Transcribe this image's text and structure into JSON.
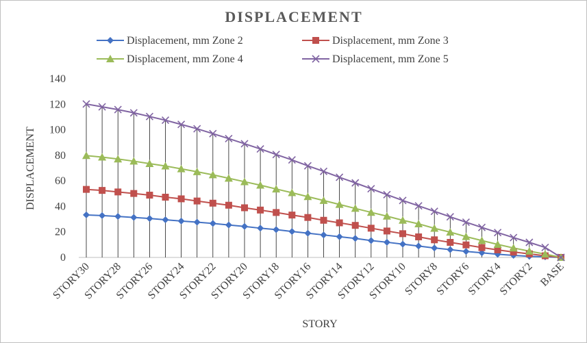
{
  "chart_data": {
    "type": "line",
    "title": "DISPLACEMENT",
    "xlabel": "STORY",
    "ylabel": "DISPLACEMENT",
    "ylim": [
      0,
      140
    ],
    "yticks": [
      0,
      20,
      40,
      60,
      80,
      100,
      120,
      140
    ],
    "grid": false,
    "legend_position": "top",
    "categories": [
      "STORY30",
      "STORY29",
      "STORY28",
      "STORY27",
      "STORY26",
      "STORY25",
      "STORY24",
      "STORY23",
      "STORY22",
      "STORY21",
      "STORY20",
      "STORY19",
      "STORY18",
      "STORY17",
      "STORY16",
      "STORY15",
      "STORY14",
      "STORY13",
      "STORY12",
      "STORY11",
      "STORY10",
      "STORY9",
      "STORY8",
      "STORY7",
      "STORY6",
      "STORY5",
      "STORY4",
      "STORY3",
      "STORY2",
      "STORY1",
      "BASE"
    ],
    "x_tick_labels_shown": [
      "STORY30",
      "STORY28",
      "STORY26",
      "STORY24",
      "STORY22",
      "STORY20",
      "STORY18",
      "STORY16",
      "STORY14",
      "STORY12",
      "STORY10",
      "STORY8",
      "STORY6",
      "STORY4",
      "STORY2",
      "BASE"
    ],
    "series": [
      {
        "name": "Displacement, mm Zone 2",
        "color": "#4472c4",
        "marker": "diamond",
        "values": [
          33.3,
          32.8,
          32.1,
          31.3,
          30.5,
          29.5,
          28.5,
          27.6,
          26.6,
          25.4,
          24.3,
          22.9,
          21.8,
          20.3,
          19.0,
          17.6,
          16.2,
          14.9,
          13.2,
          11.9,
          10.4,
          8.9,
          7.4,
          6.1,
          4.7,
          3.6,
          2.5,
          1.6,
          0.9,
          0.5,
          0
        ]
      },
      {
        "name": "Displacement, mm Zone 3",
        "color": "#c0504d",
        "marker": "square",
        "values": [
          53.3,
          52.5,
          51.3,
          50.1,
          48.8,
          47.2,
          45.9,
          44.2,
          42.5,
          40.9,
          38.9,
          37.1,
          35.2,
          33.2,
          31.3,
          29.1,
          27.1,
          25.1,
          22.9,
          20.7,
          18.6,
          16.1,
          13.8,
          11.8,
          9.8,
          7.7,
          5.9,
          4.2,
          2.8,
          1.3,
          0
        ]
      },
      {
        "name": "Displacement, mm Zone 4",
        "color": "#9bbb59",
        "marker": "triangle",
        "values": [
          79.8,
          78.6,
          77.1,
          75.4,
          73.5,
          71.6,
          69.4,
          67.1,
          64.7,
          62.0,
          59.3,
          56.6,
          53.6,
          50.7,
          47.6,
          44.6,
          41.5,
          38.4,
          35.3,
          32.3,
          29.1,
          26.3,
          22.8,
          19.8,
          16.3,
          13.2,
          10.2,
          7.4,
          4.9,
          2.6,
          0
        ]
      },
      {
        "name": "Displacement, mm Zone 5",
        "color": "#8064a2",
        "marker": "x",
        "values": [
          120.2,
          118.0,
          115.8,
          113.3,
          110.4,
          107.5,
          104.2,
          100.8,
          97.0,
          93.1,
          89.1,
          85.0,
          80.6,
          76.4,
          71.8,
          67.4,
          62.8,
          58.4,
          53.8,
          49.2,
          44.6,
          40.4,
          36.1,
          31.8,
          27.6,
          23.5,
          19.5,
          15.5,
          11.8,
          7.8,
          0
        ]
      }
    ]
  }
}
